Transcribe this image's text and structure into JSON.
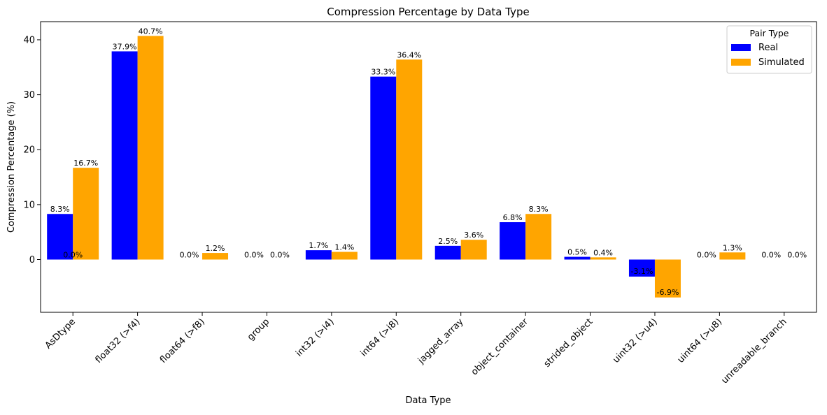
{
  "chart_data": {
    "type": "bar",
    "title": "Compression Percentage by Data Type",
    "xlabel": "Data Type",
    "ylabel": "Compression Percentage (%)",
    "ylim": [
      -9.6,
      43.3
    ],
    "yticks": [
      0,
      10,
      20,
      30,
      40
    ],
    "grid": false,
    "legend": {
      "title": "Pair Type",
      "placement": "top-right"
    },
    "categories": [
      "AsDtype",
      "float32 (>f4)",
      "float64 (>f8)",
      "group",
      "int32 (>i4)",
      "int64 (>i8)",
      "jagged_array",
      "object_container",
      "strided_object",
      "uint32 (>u4)",
      "uint64 (>u8)",
      "unreadable_branch"
    ],
    "series": [
      {
        "name": "Real",
        "color": "#0000ff",
        "values": [
          8.3,
          37.9,
          0.0,
          0.0,
          1.7,
          33.3,
          2.5,
          6.8,
          0.5,
          -3.1,
          0.0,
          0.0
        ],
        "labels": [
          "8.3%",
          "37.9%",
          "0.0%",
          "0.0%",
          "1.7%",
          "33.3%",
          "2.5%",
          "6.8%",
          "0.5%",
          "-3.1%",
          "0.0%",
          "0.0%"
        ]
      },
      {
        "name": "Simulated",
        "color": "#ffa500",
        "values": [
          16.7,
          40.7,
          1.2,
          0.0,
          1.4,
          36.4,
          3.6,
          8.3,
          0.4,
          -6.9,
          1.3,
          0.0
        ],
        "labels": [
          "16.7%",
          "40.7%",
          "1.2%",
          "0.0%",
          "1.4%",
          "36.4%",
          "3.6%",
          "8.3%",
          "0.4%",
          "-6.9%",
          "1.3%",
          "0.0%"
        ]
      }
    ],
    "extra_annotations": [
      {
        "category": "AsDtype",
        "value": 0.0,
        "text": "0.0%"
      }
    ]
  }
}
